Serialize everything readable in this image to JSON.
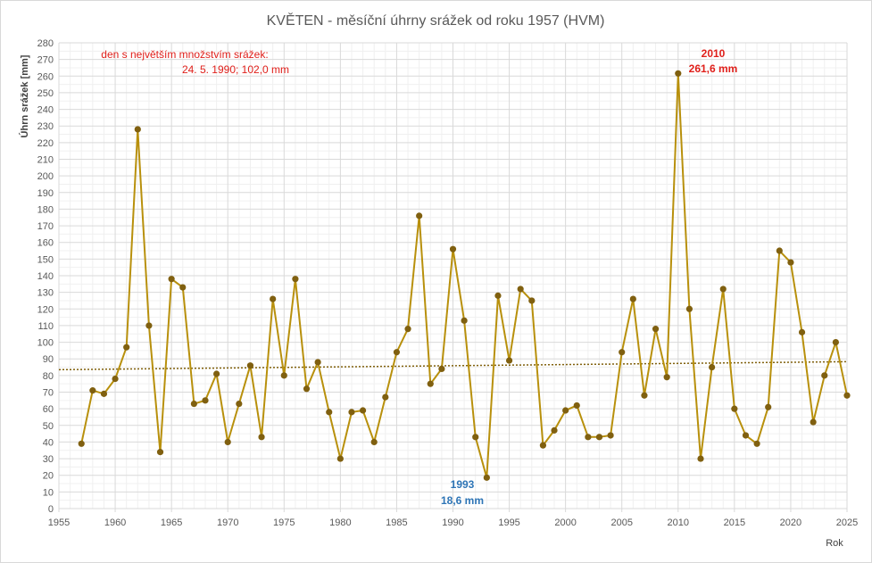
{
  "chart_data": {
    "type": "line",
    "title": "KVĚTEN - měsíční úhrny srážek od roku 1957 (HVM)",
    "ylabel": "Úhrn srážek [mm]",
    "xlabel": "Rok",
    "xlim": [
      1955,
      2025
    ],
    "ylim": [
      0,
      280
    ],
    "x_ticks": [
      1955,
      1960,
      1965,
      1970,
      1975,
      1980,
      1985,
      1990,
      1995,
      2000,
      2005,
      2010,
      2015,
      2020,
      2025
    ],
    "y_ticks": [
      0,
      10,
      20,
      30,
      40,
      50,
      60,
      70,
      80,
      90,
      100,
      110,
      120,
      130,
      140,
      150,
      160,
      170,
      180,
      190,
      200,
      210,
      220,
      230,
      240,
      250,
      260,
      270,
      280
    ],
    "grid": true,
    "series": [
      {
        "x": [
          1957,
          1958,
          1959,
          1960,
          1961,
          1962,
          1963,
          1964,
          1965,
          1966,
          1967,
          1968,
          1969,
          1970,
          1971,
          1972,
          1973,
          1974,
          1975,
          1976,
          1977,
          1978,
          1979,
          1980,
          1981,
          1982,
          1983,
          1984,
          1985,
          1986,
          1987,
          1988,
          1989,
          1990,
          1991,
          1992,
          1993,
          1994,
          1995,
          1996,
          1997,
          1998,
          1999,
          2000,
          2001,
          2002,
          2003,
          2004,
          2005,
          2006,
          2007,
          2008,
          2009,
          2010,
          2011,
          2012,
          2013,
          2014,
          2015,
          2016,
          2017,
          2018,
          2019,
          2020,
          2021,
          2022,
          2023,
          2024,
          2025
        ],
        "values": [
          39,
          71,
          69,
          78,
          97,
          228,
          110,
          34,
          138,
          133,
          63,
          65,
          81,
          40,
          63,
          86,
          43,
          126,
          80,
          138,
          72,
          88,
          58,
          30,
          58,
          59,
          40,
          67,
          94,
          108,
          176,
          75,
          84,
          156,
          113,
          43,
          18.6,
          128,
          89,
          132,
          125,
          38,
          47,
          59,
          62,
          43,
          43,
          44,
          94,
          126,
          68,
          108,
          79,
          261.6,
          120,
          30,
          85,
          132,
          60,
          44,
          39,
          61,
          155,
          148,
          106,
          52,
          80,
          100,
          68
        ],
        "color": "#b8900c",
        "marker_color": "#806010"
      }
    ],
    "trendline": {
      "style": "dotted",
      "color": "#7f5f0a",
      "from": [
        1955,
        83.5
      ],
      "to": [
        2025,
        88.3
      ]
    },
    "annotations": {
      "max_day": {
        "line1": "den s největším množstvím srážek:",
        "line2": "24. 5. 1990;  102,0 mm",
        "color": "#e0201b"
      },
      "max_year": {
        "year": "2010",
        "value": "261,6 mm",
        "color": "#e0201b"
      },
      "min_year": {
        "year": "1993",
        "value": "18,6 mm",
        "color": "#2e75b6"
      }
    }
  }
}
